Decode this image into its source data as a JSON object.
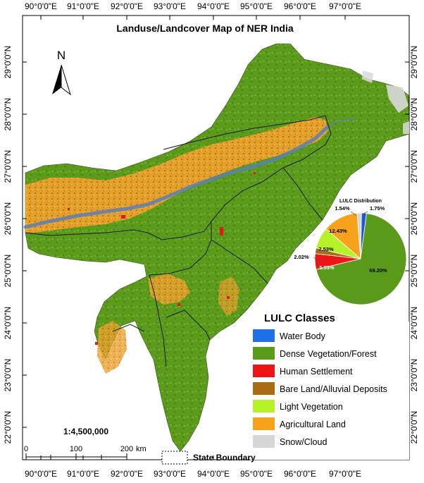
{
  "title": "Landuse/Landcover Map of NER India",
  "graticule": {
    "lon_labels": [
      "90°0'0\"E",
      "91°0'0\"E",
      "92°0'0\"E",
      "93°0'0\"E",
      "94°0'0\"E",
      "95°0'0\"E",
      "96°0'0\"E",
      "97°0'0\"E"
    ],
    "lat_labels": [
      "29°0'0\"N",
      "28°0'0\"N",
      "27°0'0\"N",
      "26°0'0\"N",
      "25°0'0\"N",
      "24°0'0\"N",
      "23°0'0\"N",
      "22°0'0\"N"
    ]
  },
  "north_arrow": {
    "letter": "N"
  },
  "scale": {
    "ratio": "1:4,500,000",
    "ticks": [
      "0",
      "100",
      "200"
    ],
    "unit": "km"
  },
  "state_boundary_label": "State Boundary",
  "legend": {
    "title": "LULC Classes",
    "items": [
      {
        "label": "Water Body",
        "color": "#1f6fe8"
      },
      {
        "label": "Dense Vegetation/Forest",
        "color": "#5a9a1a"
      },
      {
        "label": "Human Settlement",
        "color": "#ee1515"
      },
      {
        "label": "Bare Land/Alluvial Deposits",
        "color": "#a86c14"
      },
      {
        "label": "Light Vegetation",
        "color": "#b6f22a"
      },
      {
        "label": "Agricultural Land",
        "color": "#f7a21b"
      },
      {
        "label": "Snow/Cloud",
        "color": "#d6d6d6"
      }
    ]
  },
  "pie": {
    "title": "LULC Distribution",
    "slices": [
      {
        "class": "Water Body",
        "value": 1.75,
        "label": "1.75%",
        "color": "#1f55d6"
      },
      {
        "class": "Dense Vegetation/Forest",
        "value": 69.2,
        "label": "69.20%",
        "color": "#5a9a1a"
      },
      {
        "class": "Human Settlement",
        "value": 5.53,
        "label": "5.53%",
        "color": "#ee1515"
      },
      {
        "class": "Bare Land/Alluvial Deposits",
        "value": 2.02,
        "label": "2.02%",
        "color": "#a86c14"
      },
      {
        "class": "Light Vegetation",
        "value": 7.53,
        "label": "7.53%",
        "color": "#b6f22a"
      },
      {
        "class": "Agricultural Land",
        "value": 12.43,
        "label": "12.43%",
        "color": "#f7a21b"
      },
      {
        "class": "Snow/Cloud",
        "value": 1.54,
        "label": "1.54%",
        "color": "#d6d6d6"
      }
    ]
  }
}
